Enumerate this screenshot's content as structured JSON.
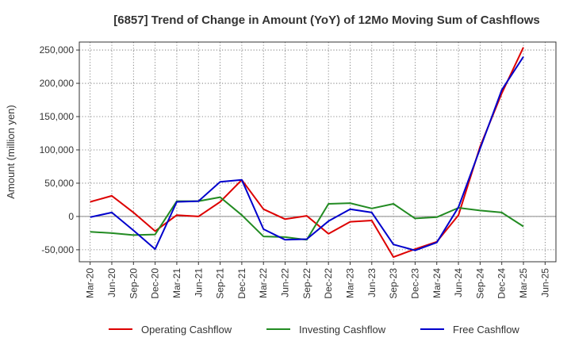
{
  "chart_data": {
    "type": "line",
    "title": "[6857]  Trend of Change in Amount (YoY) of 12Mo Moving Sum of Cashflows",
    "xlabel": "",
    "ylabel": "Amount (million yen)",
    "categories": [
      "Mar-20",
      "Jun-20",
      "Sep-20",
      "Dec-20",
      "Mar-21",
      "Jun-21",
      "Sep-21",
      "Dec-21",
      "Mar-22",
      "Jun-22",
      "Sep-22",
      "Dec-22",
      "Mar-23",
      "Jun-23",
      "Sep-23",
      "Dec-23",
      "Mar-24",
      "Jun-24",
      "Sep-24",
      "Dec-24",
      "Mar-25",
      "Jun-25"
    ],
    "ylim": [
      -68000,
      262000
    ],
    "yticks": [
      -50000,
      0,
      50000,
      100000,
      150000,
      200000,
      250000
    ],
    "ytick_labels": [
      "-50,000",
      "0",
      "50,000",
      "100,000",
      "150,000",
      "200,000",
      "250,000"
    ],
    "grid": true,
    "legend_position": "bottom",
    "series": [
      {
        "name": "Operating Cashflow",
        "color": "#dd0000",
        "values": [
          22000,
          31000,
          6000,
          -22000,
          2000,
          0,
          22000,
          55000,
          11000,
          -4000,
          1000,
          -26000,
          -8000,
          -6000,
          -61000,
          -49000,
          -38000,
          2000,
          105000,
          185000,
          254000,
          null
        ]
      },
      {
        "name": "Investing Cashflow",
        "color": "#228b22",
        "values": [
          -23000,
          -25000,
          -28000,
          -27000,
          23000,
          23000,
          29000,
          2000,
          -30000,
          -31000,
          -35000,
          19000,
          20000,
          12000,
          19000,
          -3000,
          -1000,
          13000,
          9000,
          6000,
          -15000,
          null
        ]
      },
      {
        "name": "Free Cashflow",
        "color": "#0000cc",
        "values": [
          -1000,
          6000,
          -21000,
          -49000,
          22000,
          23000,
          52000,
          55000,
          -19000,
          -35000,
          -34000,
          -7000,
          11000,
          6000,
          -42000,
          -51000,
          -39000,
          14000,
          102000,
          190000,
          240000,
          null
        ]
      }
    ]
  }
}
